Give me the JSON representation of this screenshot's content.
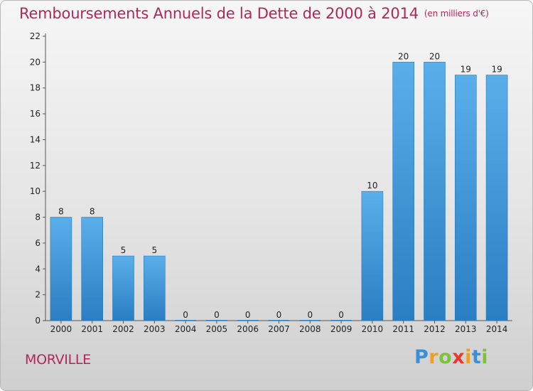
{
  "title": "Remboursements Annuels de la Dette de 2000 à 2014",
  "subtitle": "(en milliers d'€)",
  "commune": "MORVILLE",
  "logo": {
    "text": "Proxiti",
    "letters": [
      {
        "ch": "P",
        "color": "#3b8fd6"
      },
      {
        "ch": "r",
        "color": "#f0a020"
      },
      {
        "ch": "o",
        "color": "#7cc23a"
      },
      {
        "ch": "x",
        "color": "#e8392b"
      },
      {
        "ch": "i",
        "color": "#f0a020"
      },
      {
        "ch": "t",
        "color": "#3b8fd6"
      },
      {
        "ch": "i",
        "color": "#7cc23a"
      }
    ]
  },
  "colors": {
    "title": "#b0285a",
    "bar_top": "#5aaeea",
    "bar_bottom": "#2a7ec2",
    "axis": "#555555"
  },
  "chart_data": {
    "type": "bar",
    "title": "Remboursements Annuels de la Dette de 2000 à 2014",
    "subtitle": "(en milliers d'€)",
    "xlabel": "",
    "ylabel": "",
    "categories": [
      "2000",
      "2001",
      "2002",
      "2003",
      "2004",
      "2005",
      "2006",
      "2007",
      "2008",
      "2009",
      "2010",
      "2011",
      "2012",
      "2013",
      "2014"
    ],
    "values": [
      8,
      8,
      5,
      5,
      0,
      0,
      0,
      0,
      0,
      0,
      10,
      20,
      20,
      19,
      19
    ],
    "data_labels": [
      "8",
      "8",
      "5",
      "5",
      "0",
      "0",
      "0",
      "0",
      "0",
      "0",
      "10",
      "20",
      "20",
      "19",
      "19"
    ],
    "ylim": [
      0,
      22
    ],
    "yticks": [
      0,
      2,
      4,
      6,
      8,
      10,
      12,
      14,
      16,
      18,
      20,
      22
    ],
    "grid": false,
    "legend": "none"
  }
}
